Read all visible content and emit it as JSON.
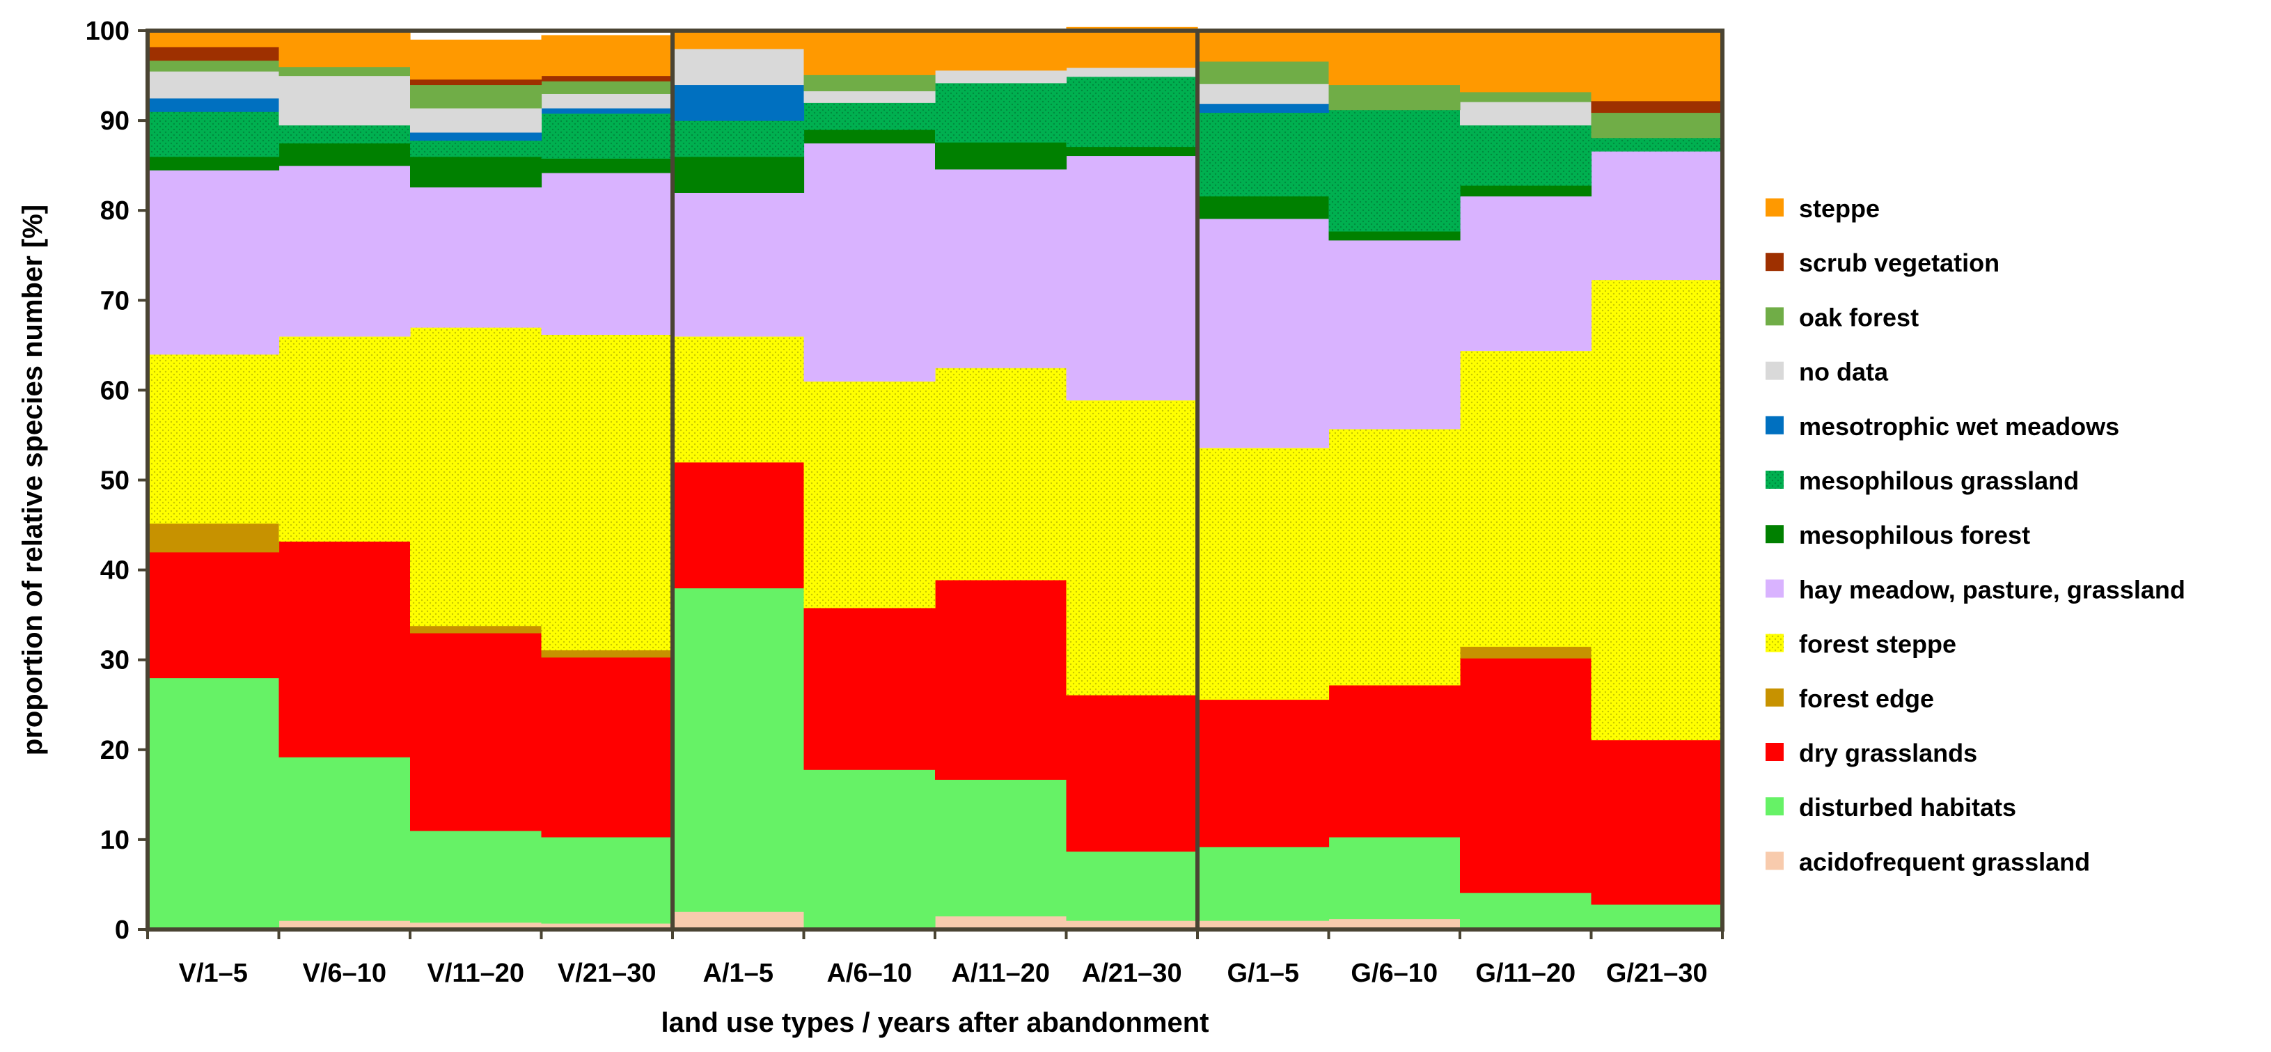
{
  "chart_data": {
    "type": "bar",
    "stacked": true,
    "xlabel": "land use types / years after abandonment",
    "ylabel": "proportion of relative species number [%]",
    "ylim": [
      0,
      100
    ],
    "yticks": [
      "0",
      "10",
      "20",
      "30",
      "40",
      "50",
      "60",
      "70",
      "80",
      "90",
      "100"
    ],
    "categories": [
      "V/1–5",
      "V/6–10",
      "V/11–20",
      "V/21–30",
      "A/1–5",
      "A/6–10",
      "A/11–20",
      "A/21–30",
      "G/1–5",
      "G/6–10",
      "G/11–20",
      "G/21–30"
    ],
    "group_separators_after": [
      3,
      7
    ],
    "legend_position": "right",
    "series": [
      {
        "name": "acidofrequent grassland",
        "color": "#F8CBAD",
        "pattern": false,
        "values": [
          0,
          1,
          0.8,
          0.7,
          2,
          0,
          1.5,
          1,
          1,
          1.2,
          0,
          0
        ]
      },
      {
        "name": "disturbed habitats",
        "color": "#66F266",
        "pattern": false,
        "values": [
          28,
          18.2,
          10.2,
          9.6,
          36,
          17.8,
          15.2,
          7.7,
          8.2,
          9.1,
          4.1,
          2.8
        ]
      },
      {
        "name": "dry grasslands",
        "color": "#FF0000",
        "pattern": false,
        "values": [
          14,
          24,
          22,
          20,
          14,
          18,
          22.2,
          17.4,
          16.4,
          16.9,
          26.1,
          18.3
        ]
      },
      {
        "name": "forest edge",
        "color": "#C79200",
        "pattern": false,
        "values": [
          3.2,
          0,
          0.8,
          0.8,
          0,
          0,
          0,
          0,
          0,
          0,
          1.3,
          0
        ]
      },
      {
        "name": "forest steppe",
        "color": "#FFFF00",
        "pattern": true,
        "values": [
          18.8,
          22.8,
          33.2,
          35.1,
          14,
          25.2,
          23.6,
          32.8,
          28,
          28.5,
          32.9,
          51.2
        ]
      },
      {
        "name": "hay meadow, pasture, grassland",
        "color": "#D9B3FF",
        "pattern": false,
        "values": [
          20.5,
          19,
          15.6,
          18,
          16,
          26.5,
          22.1,
          27.2,
          25.5,
          21,
          17.2,
          14.3
        ]
      },
      {
        "name": "mesophilous forest",
        "color": "#008000",
        "pattern": false,
        "values": [
          1.5,
          2.5,
          3.4,
          1.6,
          4,
          1.5,
          3,
          1,
          2.5,
          1,
          1.2,
          0
        ]
      },
      {
        "name": "mesophilous grassland",
        "color": "#00B050",
        "pattern": true,
        "values": [
          5,
          2,
          1.8,
          5,
          4,
          3,
          6.6,
          7.8,
          9.3,
          13.5,
          6.7,
          1.5
        ]
      },
      {
        "name": "mesotrophic wet meadows",
        "color": "#0070C0",
        "pattern": false,
        "values": [
          1.5,
          0,
          0.9,
          0.6,
          4,
          0,
          0,
          0,
          1,
          0,
          0,
          0
        ]
      },
      {
        "name": "no data",
        "color": "#D9D9D9",
        "pattern": false,
        "values": [
          3,
          5.5,
          2.7,
          1.6,
          4,
          1.3,
          1.4,
          1,
          2.2,
          0,
          2.6,
          0
        ]
      },
      {
        "name": "oak forest",
        "color": "#70AD47",
        "pattern": false,
        "values": [
          1.2,
          1,
          2.6,
          1.4,
          0,
          1.8,
          0,
          0,
          2.5,
          2.8,
          1.1,
          2.8
        ]
      },
      {
        "name": "scrub vegetation",
        "color": "#9E3000",
        "pattern": false,
        "values": [
          1.5,
          0,
          0.6,
          0.6,
          0,
          0,
          0,
          0,
          0,
          0,
          0,
          1.3
        ]
      },
      {
        "name": "steppe",
        "color": "#FF9900",
        "pattern": false,
        "values": [
          1.8,
          4,
          4.4,
          4.5,
          2,
          4.9,
          4.4,
          4.5,
          3.4,
          6,
          6.8,
          7.8
        ]
      }
    ]
  }
}
